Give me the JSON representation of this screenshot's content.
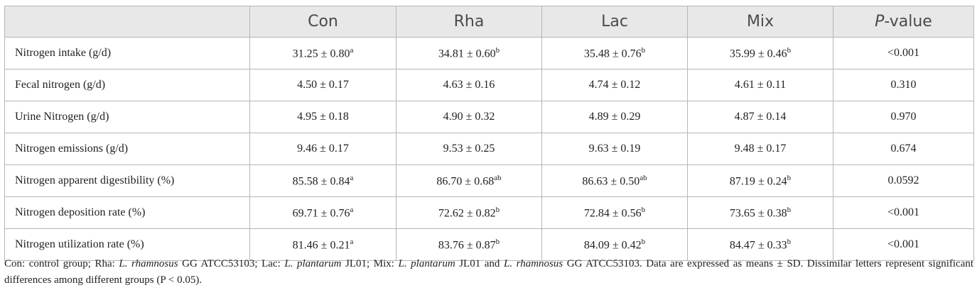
{
  "table": {
    "header": [
      [
        {
          "text": "Con"
        }
      ],
      [
        {
          "text": "Rha"
        }
      ],
      [
        {
          "text": "Lac"
        }
      ],
      [
        {
          "text": "Mix"
        }
      ],
      [
        {
          "text": "P",
          "italic": true
        },
        {
          "text": "-value"
        }
      ]
    ],
    "rows": [
      {
        "label": "Nitrogen intake (g/d)",
        "cells": [
          {
            "text": "31.25 ± 0.80",
            "sup": "a"
          },
          {
            "text": "34.81 ± 0.60",
            "sup": "b"
          },
          {
            "text": "35.48 ± 0.76",
            "sup": "b"
          },
          {
            "text": "35.99 ± 0.46",
            "sup": "b"
          },
          {
            "text": "<0.001"
          }
        ]
      },
      {
        "label": "Fecal nitrogen (g/d)",
        "cells": [
          {
            "text": "4.50 ± 0.17"
          },
          {
            "text": "4.63 ± 0.16"
          },
          {
            "text": "4.74 ± 0.12"
          },
          {
            "text": "4.61 ± 0.11"
          },
          {
            "text": "0.310"
          }
        ]
      },
      {
        "label": "Urine Nitrogen (g/d)",
        "cells": [
          {
            "text": "4.95 ± 0.18"
          },
          {
            "text": "4.90 ± 0.32"
          },
          {
            "text": "4.89 ± 0.29"
          },
          {
            "text": "4.87 ± 0.14"
          },
          {
            "text": "0.970"
          }
        ]
      },
      {
        "label": "Nitrogen emissions (g/d)",
        "cells": [
          {
            "text": "9.46 ± 0.17"
          },
          {
            "text": "9.53 ± 0.25"
          },
          {
            "text": "9.63 ± 0.19"
          },
          {
            "text": "9.48 ± 0.17"
          },
          {
            "text": "0.674"
          }
        ]
      },
      {
        "label": "Nitrogen apparent digestibility (%)",
        "cells": [
          {
            "text": "85.58 ± 0.84",
            "sup": "a"
          },
          {
            "text": "86.70 ± 0.68",
            "sup": "ab"
          },
          {
            "text": "86.63 ± 0.50",
            "sup": "ab"
          },
          {
            "text": "87.19 ± 0.24",
            "sup": "b"
          },
          {
            "text": "0.0592"
          }
        ]
      },
      {
        "label": "Nitrogen deposition rate (%)",
        "cells": [
          {
            "text": "69.71 ± 0.76",
            "sup": "a"
          },
          {
            "text": "72.62 ± 0.82",
            "sup": "b"
          },
          {
            "text": "72.84 ± 0.56",
            "sup": "b"
          },
          {
            "text": "73.65 ± 0.38",
            "sup": "b"
          },
          {
            "text": "<0.001"
          }
        ]
      },
      {
        "label": "Nitrogen utilization rate (%)",
        "cells": [
          {
            "text": "81.46 ± 0.21",
            "sup": "a"
          },
          {
            "text": "83.76 ± 0.87",
            "sup": "b"
          },
          {
            "text": "84.09 ± 0.42",
            "sup": "b"
          },
          {
            "text": "84.47 ± 0.33",
            "sup": "b"
          },
          {
            "text": "<0.001"
          }
        ]
      }
    ]
  },
  "footnote": [
    {
      "text": "Con: control group; Rha: "
    },
    {
      "text": "L. rhamnosus",
      "italic": true
    },
    {
      "text": " GG ATCC53103; Lac: "
    },
    {
      "text": "L. plantarum",
      "italic": true
    },
    {
      "text": " JL01; Mix: "
    },
    {
      "text": "L. plantarum",
      "italic": true
    },
    {
      "text": " JL01 and "
    },
    {
      "text": "L. rhamnosus",
      "italic": true
    },
    {
      "text": " GG ATCC53103. Data are expressed as means ± SD. Dissimilar letters represent significant differences among different groups (P < 0.05)."
    }
  ]
}
